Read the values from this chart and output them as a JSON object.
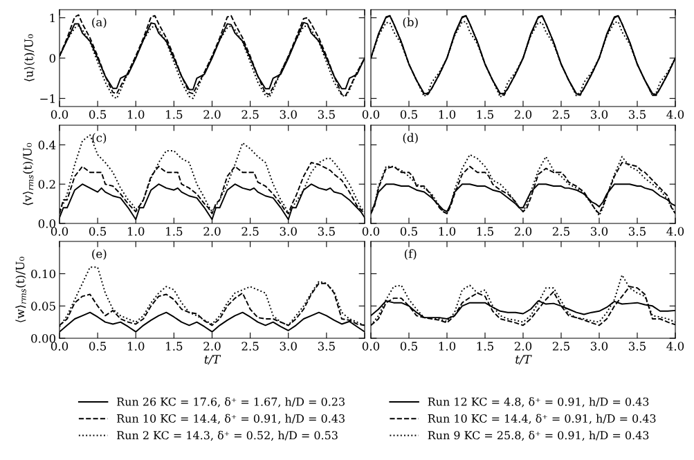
{
  "chart_data": [
    {
      "type": "line",
      "ylabel": "⟨u⟩(t)/U₀",
      "annotations": [
        "(a)"
      ],
      "xlim": [
        0,
        4
      ],
      "ylim": [
        -1.2,
        1.2
      ],
      "legend": "bottom",
      "xticks": [
        {
          "value": 0,
          "label": "0.0"
        },
        {
          "value": 0.5,
          "label": "0.5"
        },
        {
          "value": 1,
          "label": "1.0"
        },
        {
          "value": 1.5,
          "label": "1.5"
        },
        {
          "value": 2,
          "label": "2.0"
        },
        {
          "value": 2.5,
          "label": "2.5"
        },
        {
          "value": 3,
          "label": "3.0"
        },
        {
          "value": 3.5,
          "label": "3.5"
        },
        {
          "value": 4,
          "label": null
        }
      ],
      "yticks": [
        {
          "value": -1,
          "label": "−1"
        },
        0,
        1
      ],
      "grid": false,
      "x": [
        0,
        0.1,
        0.2,
        0.25,
        0.3,
        0.4,
        0.5,
        0.6,
        0.7,
        0.75,
        0.8,
        0.9,
        1,
        1.1,
        1.2,
        1.25,
        1.3,
        1.4,
        1.5,
        1.6,
        1.7,
        1.75,
        1.8,
        1.9,
        2,
        2.1,
        2.2,
        2.25,
        2.3,
        2.4,
        2.5,
        2.6,
        2.7,
        2.75,
        2.8,
        2.9,
        3,
        3.1,
        3.2,
        3.25,
        3.3,
        3.4,
        3.5,
        3.6,
        3.7,
        3.75,
        3.8,
        3.9,
        4
      ],
      "series": [
        {
          "name": "Run 26 KC = 17.6, δ⁺ = 1.67, h/D = 0.23",
          "color": "#000000",
          "line_style": "solid",
          "values": [
            0.05,
            0.45,
            0.85,
            0.85,
            0.62,
            0.42,
            0.0,
            -0.45,
            -0.75,
            -0.75,
            -0.5,
            -0.4,
            0.0,
            0.45,
            0.87,
            0.85,
            0.62,
            0.42,
            0.0,
            -0.45,
            -0.78,
            -0.78,
            -0.5,
            -0.4,
            0.0,
            0.45,
            0.85,
            0.83,
            0.62,
            0.42,
            0.0,
            -0.45,
            -0.76,
            -0.76,
            -0.5,
            -0.4,
            0.0,
            0.45,
            0.88,
            0.85,
            0.62,
            0.42,
            0.0,
            -0.45,
            -0.76,
            -0.76,
            -0.5,
            -0.4,
            0.0
          ]
        },
        {
          "name": "Run 10 KC = 14.4, δ⁺ = 0.91, h/D = 0.43",
          "color": "#000000",
          "line_style": "dashed",
          "values": [
            0.05,
            0.5,
            1.02,
            1.07,
            0.85,
            0.5,
            0.05,
            -0.45,
            -0.85,
            -0.88,
            -0.7,
            -0.35,
            0.05,
            0.5,
            1.02,
            1.05,
            0.85,
            0.5,
            0.05,
            -0.45,
            -0.85,
            -0.88,
            -0.7,
            -0.35,
            0.05,
            0.5,
            1.02,
            1.05,
            0.85,
            0.5,
            0.05,
            -0.45,
            -0.87,
            -0.9,
            -0.72,
            -0.35,
            0.05,
            0.5,
            0.98,
            1.0,
            0.85,
            0.5,
            0.05,
            -0.45,
            -0.9,
            -0.93,
            -0.75,
            -0.35,
            0.0
          ]
        },
        {
          "name": "Run 2 KC = 14.3, δ⁺ = 0.52, h/D = 0.53",
          "color": "#000000",
          "line_style": "dotted",
          "values": [
            0.05,
            0.45,
            0.75,
            0.8,
            0.7,
            0.4,
            -0.1,
            -0.6,
            -0.95,
            -1.0,
            -0.8,
            -0.35,
            0.05,
            0.45,
            0.75,
            0.8,
            0.7,
            0.4,
            -0.1,
            -0.6,
            -0.95,
            -1.0,
            -0.8,
            -0.35,
            0.05,
            0.45,
            0.75,
            0.8,
            0.7,
            0.4,
            -0.1,
            -0.6,
            -0.93,
            -0.97,
            -0.8,
            -0.35,
            0.05,
            0.45,
            0.78,
            0.8,
            0.7,
            0.4,
            -0.1,
            -0.6,
            -0.92,
            -0.95,
            -0.8,
            -0.35,
            0.0
          ]
        }
      ]
    },
    {
      "type": "line",
      "annotations": [
        "(b)"
      ],
      "xlim": [
        0,
        4
      ],
      "ylim": [
        -1.2,
        1.2
      ],
      "tick_labels": "x",
      "legend": "bottom",
      "xticks": [
        {
          "value": 0,
          "label": "0.0"
        },
        {
          "value": 0.5,
          "label": "0.5"
        },
        {
          "value": 1,
          "label": "1.0"
        },
        {
          "value": 1.5,
          "label": "1.5"
        },
        {
          "value": 2,
          "label": "2.0"
        },
        {
          "value": 2.5,
          "label": "2.5"
        },
        {
          "value": 3,
          "label": "3.0"
        },
        {
          "value": 3.5,
          "label": "3.5"
        },
        {
          "value": 4,
          "label": "4.0"
        }
      ],
      "yticks": [
        {
          "value": -1,
          "label": null
        },
        {
          "value": 0,
          "label": null
        },
        {
          "value": 1,
          "label": null
        }
      ],
      "grid": false,
      "x": [
        0,
        0.1,
        0.2,
        0.25,
        0.3,
        0.4,
        0.5,
        0.6,
        0.7,
        0.75,
        0.8,
        0.9,
        1,
        1.1,
        1.2,
        1.25,
        1.3,
        1.4,
        1.5,
        1.6,
        1.7,
        1.75,
        1.8,
        1.9,
        2,
        2.1,
        2.2,
        2.25,
        2.3,
        2.4,
        2.5,
        2.6,
        2.7,
        2.75,
        2.8,
        2.9,
        3,
        3.1,
        3.2,
        3.25,
        3.3,
        3.4,
        3.5,
        3.6,
        3.7,
        3.75,
        3.8,
        3.9,
        4
      ],
      "series": [
        {
          "name": "Run 12 KC = 4.8, δ⁺ = 0.91, h/D = 0.43",
          "color": "#000000",
          "line_style": "solid",
          "values": [
            0.0,
            0.6,
            1.02,
            1.05,
            0.85,
            0.4,
            -0.15,
            -0.55,
            -0.88,
            -0.88,
            -0.75,
            -0.4,
            0.0,
            0.6,
            1.02,
            1.05,
            0.85,
            0.4,
            -0.15,
            -0.55,
            -0.88,
            -0.88,
            -0.75,
            -0.4,
            0.0,
            0.6,
            1.02,
            1.05,
            0.85,
            0.4,
            -0.15,
            -0.55,
            -0.88,
            -0.9,
            -0.75,
            -0.4,
            0.0,
            0.6,
            1.02,
            1.05,
            0.85,
            0.4,
            -0.15,
            -0.55,
            -0.88,
            -0.9,
            -0.75,
            -0.4,
            0.0
          ]
        },
        {
          "name": "Run 10 KC = 14.4, δ⁺ = 0.91, h/D = 0.43",
          "color": "#000000",
          "line_style": "dashed",
          "values": [
            0.0,
            0.58,
            1.0,
            1.05,
            0.85,
            0.4,
            -0.15,
            -0.55,
            -0.9,
            -0.9,
            -0.75,
            -0.4,
            0.0,
            0.58,
            1.0,
            1.05,
            0.85,
            0.4,
            -0.15,
            -0.55,
            -0.9,
            -0.92,
            -0.75,
            -0.4,
            0.0,
            0.58,
            1.0,
            1.05,
            0.85,
            0.4,
            -0.15,
            -0.55,
            -0.9,
            -0.92,
            -0.75,
            -0.4,
            0.0,
            0.58,
            1.0,
            1.05,
            0.85,
            0.4,
            -0.15,
            -0.55,
            -0.92,
            -0.92,
            -0.75,
            -0.4,
            0.0
          ]
        },
        {
          "name": "Run 9 KC = 25.8, δ⁺ = 0.91, h/D = 0.43",
          "color": "#000000",
          "line_style": "dotted",
          "values": [
            0.0,
            0.55,
            0.88,
            0.88,
            0.65,
            0.35,
            -0.15,
            -0.55,
            -0.95,
            -0.85,
            -0.6,
            -0.35,
            0.0,
            0.55,
            0.9,
            0.9,
            0.65,
            0.35,
            -0.15,
            -0.55,
            -0.97,
            -0.85,
            -0.6,
            -0.35,
            0.0,
            0.55,
            0.88,
            0.88,
            0.65,
            0.35,
            -0.15,
            -0.55,
            -0.93,
            -0.85,
            -0.6,
            -0.35,
            0.0,
            0.55,
            0.88,
            0.9,
            0.65,
            0.35,
            -0.15,
            -0.55,
            -0.93,
            -0.85,
            -0.6,
            -0.35,
            0.0
          ]
        }
      ]
    },
    {
      "type": "line",
      "ylabel": "⟨v⟩$_{rms}$(t)/U₀",
      "annotations": [
        "(c)"
      ],
      "xlim": [
        0,
        4
      ],
      "ylim": [
        0,
        0.5
      ],
      "xticks": [
        {
          "value": 0,
          "label": "0.0"
        },
        {
          "value": 0.5,
          "label": "0.5"
        },
        {
          "value": 1,
          "label": "1.0"
        },
        {
          "value": 1.5,
          "label": "1.5"
        },
        {
          "value": 2,
          "label": "2.0"
        },
        {
          "value": 2.5,
          "label": "2.5"
        },
        {
          "value": 3,
          "label": "3.0"
        },
        {
          "value": 3.5,
          "label": "3.5"
        },
        {
          "value": 4,
          "label": null
        }
      ],
      "yticks": [
        {
          "value": 0,
          "label": "0.0"
        },
        {
          "value": 0.2,
          "label": "0.2"
        },
        {
          "value": 0.4,
          "label": "0.4"
        }
      ],
      "grid": false,
      "x": [
        0,
        0.05,
        0.1,
        0.2,
        0.3,
        0.4,
        0.5,
        0.55,
        0.6,
        0.7,
        0.8,
        0.9,
        0.95,
        1,
        1.05,
        1.1,
        1.2,
        1.3,
        1.4,
        1.5,
        1.55,
        1.6,
        1.7,
        1.8,
        1.9,
        1.95,
        2,
        2.05,
        2.1,
        2.2,
        2.3,
        2.4,
        2.5,
        2.55,
        2.6,
        2.7,
        2.8,
        2.9,
        2.95,
        3,
        3.05,
        3.1,
        3.2,
        3.3,
        3.4,
        3.5,
        3.55,
        3.6,
        3.7,
        3.8,
        3.9,
        3.95,
        4
      ],
      "series": [
        {
          "color": "#000000",
          "line_style": "solid",
          "values": [
            0.03,
            0.08,
            0.08,
            0.17,
            0.2,
            0.18,
            0.16,
            0.18,
            0.16,
            0.14,
            0.13,
            0.08,
            0.05,
            0.02,
            0.08,
            0.08,
            0.17,
            0.2,
            0.18,
            0.17,
            0.18,
            0.16,
            0.14,
            0.13,
            0.08,
            0.05,
            0.02,
            0.08,
            0.08,
            0.17,
            0.2,
            0.18,
            0.17,
            0.18,
            0.16,
            0.14,
            0.13,
            0.08,
            0.05,
            0.02,
            0.08,
            0.08,
            0.17,
            0.2,
            0.18,
            0.17,
            0.18,
            0.16,
            0.15,
            0.12,
            0.08,
            0.06,
            0.03
          ]
        },
        {
          "color": "#000000",
          "line_style": "dashed",
          "values": [
            0.05,
            0.12,
            0.12,
            0.24,
            0.29,
            0.26,
            0.26,
            0.26,
            0.2,
            0.19,
            0.15,
            0.1,
            0.08,
            0.06,
            0.09,
            0.12,
            0.24,
            0.29,
            0.26,
            0.26,
            0.26,
            0.2,
            0.18,
            0.15,
            0.1,
            0.08,
            0.05,
            0.1,
            0.12,
            0.24,
            0.29,
            0.26,
            0.26,
            0.26,
            0.21,
            0.19,
            0.15,
            0.1,
            0.07,
            0.05,
            0.1,
            0.14,
            0.24,
            0.31,
            0.3,
            0.28,
            0.27,
            0.25,
            0.22,
            0.16,
            0.09,
            0.07,
            0.05
          ]
        },
        {
          "color": "#000000",
          "line_style": "dotted",
          "values": [
            0.07,
            0.1,
            0.15,
            0.3,
            0.42,
            0.45,
            0.35,
            0.33,
            0.31,
            0.26,
            0.18,
            0.12,
            0.1,
            0.07,
            0.09,
            0.12,
            0.23,
            0.31,
            0.37,
            0.37,
            0.35,
            0.33,
            0.31,
            0.2,
            0.13,
            0.09,
            0.06,
            0.09,
            0.12,
            0.2,
            0.3,
            0.41,
            0.38,
            0.36,
            0.34,
            0.31,
            0.2,
            0.12,
            0.09,
            0.05,
            0.08,
            0.11,
            0.17,
            0.26,
            0.31,
            0.33,
            0.33,
            0.31,
            0.26,
            0.2,
            0.12,
            0.08,
            0.06
          ]
        }
      ]
    },
    {
      "type": "line",
      "annotations": [
        "(d)"
      ],
      "xlim": [
        0,
        4
      ],
      "ylim": [
        0,
        0.5
      ],
      "tick_labels": "x",
      "xticks": [
        {
          "value": 0,
          "label": "0.0"
        },
        {
          "value": 0.5,
          "label": "0.5"
        },
        {
          "value": 1,
          "label": "1.0"
        },
        {
          "value": 1.5,
          "label": "1.5"
        },
        {
          "value": 2,
          "label": "2.0"
        },
        {
          "value": 2.5,
          "label": "2.5"
        },
        {
          "value": 3,
          "label": "3.0"
        },
        {
          "value": 3.5,
          "label": "3.5"
        },
        {
          "value": 4,
          "label": "4.0"
        }
      ],
      "yticks": [
        {
          "value": 0,
          "label": null
        },
        {
          "value": 0.2,
          "label": null
        },
        {
          "value": 0.4,
          "label": null
        }
      ],
      "grid": false,
      "x": [
        0,
        0.05,
        0.1,
        0.2,
        0.3,
        0.4,
        0.5,
        0.55,
        0.6,
        0.7,
        0.8,
        0.9,
        0.95,
        1,
        1.05,
        1.1,
        1.2,
        1.3,
        1.4,
        1.5,
        1.55,
        1.6,
        1.7,
        1.8,
        1.9,
        1.95,
        2,
        2.05,
        2.1,
        2.2,
        2.3,
        2.4,
        2.5,
        2.55,
        2.6,
        2.7,
        2.8,
        2.9,
        2.95,
        3,
        3.05,
        3.1,
        3.2,
        3.3,
        3.4,
        3.5,
        3.55,
        3.6,
        3.7,
        3.8,
        3.9,
        3.95,
        4
      ],
      "series": [
        {
          "color": "#000000",
          "line_style": "solid",
          "values": [
            0.05,
            0.1,
            0.16,
            0.2,
            0.2,
            0.19,
            0.19,
            0.18,
            0.17,
            0.16,
            0.13,
            0.09,
            0.07,
            0.06,
            0.1,
            0.16,
            0.2,
            0.2,
            0.19,
            0.19,
            0.18,
            0.17,
            0.16,
            0.13,
            0.1,
            0.08,
            0.08,
            0.12,
            0.16,
            0.2,
            0.2,
            0.19,
            0.19,
            0.18,
            0.18,
            0.17,
            0.15,
            0.11,
            0.1,
            0.085,
            0.11,
            0.15,
            0.2,
            0.2,
            0.2,
            0.19,
            0.19,
            0.18,
            0.17,
            0.14,
            0.12,
            0.1,
            0.09
          ]
        },
        {
          "color": "#000000",
          "line_style": "dashed",
          "values": [
            0.05,
            0.09,
            0.18,
            0.28,
            0.29,
            0.26,
            0.26,
            0.24,
            0.19,
            0.19,
            0.14,
            0.08,
            0.06,
            0.05,
            0.09,
            0.15,
            0.25,
            0.29,
            0.26,
            0.26,
            0.24,
            0.2,
            0.17,
            0.15,
            0.11,
            0.08,
            0.06,
            0.08,
            0.13,
            0.25,
            0.28,
            0.26,
            0.26,
            0.24,
            0.21,
            0.19,
            0.16,
            0.1,
            0.07,
            0.05,
            0.09,
            0.14,
            0.24,
            0.31,
            0.3,
            0.29,
            0.27,
            0.26,
            0.22,
            0.18,
            0.14,
            0.08,
            0.05
          ]
        },
        {
          "color": "#000000",
          "line_style": "dotted",
          "values": [
            0.06,
            0.1,
            0.19,
            0.29,
            0.29,
            0.27,
            0.24,
            0.22,
            0.2,
            0.18,
            0.15,
            0.09,
            0.06,
            0.05,
            0.1,
            0.17,
            0.28,
            0.35,
            0.33,
            0.29,
            0.26,
            0.22,
            0.2,
            0.16,
            0.11,
            0.08,
            0.06,
            0.1,
            0.16,
            0.27,
            0.34,
            0.27,
            0.24,
            0.22,
            0.2,
            0.18,
            0.15,
            0.1,
            0.07,
            0.04,
            0.08,
            0.14,
            0.25,
            0.34,
            0.29,
            0.27,
            0.25,
            0.23,
            0.2,
            0.17,
            0.12,
            0.08,
            0.06
          ]
        }
      ]
    },
    {
      "type": "line",
      "ylabel": "⟨w⟩$_{rms}$(t)/U₀",
      "xlabel": "t/T",
      "annotations": [
        "(e)"
      ],
      "xlim": [
        0,
        4
      ],
      "ylim": [
        0,
        0.15
      ],
      "xticks": [
        {
          "value": 0,
          "label": "0.0"
        },
        {
          "value": 0.5,
          "label": "0.5"
        },
        {
          "value": 1,
          "label": "1.0"
        },
        {
          "value": 1.5,
          "label": "1.5"
        },
        {
          "value": 2,
          "label": "2.0"
        },
        {
          "value": 2.5,
          "label": "2.5"
        },
        {
          "value": 3,
          "label": "3.0"
        },
        {
          "value": 3.5,
          "label": "3.5"
        },
        {
          "value": 4,
          "label": null
        }
      ],
      "yticks": [
        {
          "value": 0,
          "label": "0.00"
        },
        {
          "value": 0.05,
          "label": "0.05"
        },
        {
          "value": 0.1,
          "label": "0.10"
        }
      ],
      "grid": false,
      "x": [
        0,
        0.1,
        0.2,
        0.3,
        0.4,
        0.5,
        0.6,
        0.7,
        0.8,
        0.9,
        1,
        1.1,
        1.2,
        1.3,
        1.4,
        1.5,
        1.6,
        1.7,
        1.8,
        1.9,
        2,
        2.1,
        2.2,
        2.3,
        2.4,
        2.5,
        2.6,
        2.7,
        2.8,
        2.9,
        3,
        3.1,
        3.2,
        3.3,
        3.4,
        3.5,
        3.6,
        3.7,
        3.8,
        3.9,
        4
      ],
      "series": [
        {
          "color": "#000000",
          "line_style": "solid",
          "values": [
            0.01,
            0.02,
            0.03,
            0.035,
            0.04,
            0.033,
            0.025,
            0.022,
            0.025,
            0.018,
            0.01,
            0.02,
            0.028,
            0.035,
            0.04,
            0.033,
            0.025,
            0.02,
            0.025,
            0.018,
            0.01,
            0.02,
            0.028,
            0.035,
            0.04,
            0.033,
            0.025,
            0.02,
            0.025,
            0.018,
            0.012,
            0.02,
            0.03,
            0.035,
            0.04,
            0.035,
            0.028,
            0.022,
            0.026,
            0.018,
            0.01
          ]
        },
        {
          "color": "#000000",
          "line_style": "dashed",
          "values": [
            0.02,
            0.03,
            0.055,
            0.065,
            0.068,
            0.05,
            0.035,
            0.043,
            0.03,
            0.025,
            0.022,
            0.03,
            0.05,
            0.065,
            0.068,
            0.06,
            0.045,
            0.04,
            0.038,
            0.027,
            0.02,
            0.03,
            0.05,
            0.062,
            0.07,
            0.045,
            0.032,
            0.03,
            0.03,
            0.025,
            0.02,
            0.03,
            0.045,
            0.068,
            0.085,
            0.085,
            0.07,
            0.03,
            0.028,
            0.022,
            0.02
          ]
        },
        {
          "color": "#000000",
          "line_style": "dotted",
          "values": [
            0.018,
            0.035,
            0.06,
            0.085,
            0.11,
            0.11,
            0.07,
            0.045,
            0.035,
            0.03,
            0.025,
            0.035,
            0.055,
            0.07,
            0.08,
            0.075,
            0.055,
            0.04,
            0.035,
            0.028,
            0.022,
            0.035,
            0.055,
            0.07,
            0.075,
            0.08,
            0.075,
            0.07,
            0.035,
            0.025,
            0.02,
            0.035,
            0.05,
            0.07,
            0.088,
            0.085,
            0.072,
            0.04,
            0.03,
            0.025,
            0.02
          ]
        }
      ]
    },
    {
      "type": "line",
      "xlabel": "t/T",
      "annotations": [
        "(f)"
      ],
      "xlim": [
        0,
        4
      ],
      "ylim": [
        0,
        0.15
      ],
      "tick_labels": "x",
      "xticks": [
        {
          "value": 0,
          "label": "0.0"
        },
        {
          "value": 0.5,
          "label": "0.5"
        },
        {
          "value": 1,
          "label": "1.0"
        },
        {
          "value": 1.5,
          "label": "1.5"
        },
        {
          "value": 2,
          "label": "2.0"
        },
        {
          "value": 2.5,
          "label": "2.5"
        },
        {
          "value": 3,
          "label": "3.0"
        },
        {
          "value": 3.5,
          "label": "3.5"
        },
        {
          "value": 4,
          "label": "4.0"
        }
      ],
      "yticks": [
        {
          "value": 0,
          "label": null
        },
        {
          "value": 0.05,
          "label": null
        },
        {
          "value": 0.1,
          "label": null
        }
      ],
      "grid": false,
      "x": [
        0,
        0.1,
        0.2,
        0.3,
        0.4,
        0.5,
        0.6,
        0.7,
        0.8,
        0.9,
        1,
        1.1,
        1.2,
        1.3,
        1.4,
        1.5,
        1.6,
        1.7,
        1.8,
        1.9,
        2,
        2.1,
        2.2,
        2.3,
        2.4,
        2.5,
        2.6,
        2.7,
        2.8,
        2.9,
        3,
        3.1,
        3.2,
        3.3,
        3.4,
        3.5,
        3.6,
        3.7,
        3.8,
        3.9,
        4
      ],
      "series": [
        {
          "color": "#000000",
          "line_style": "solid",
          "values": [
            0.035,
            0.045,
            0.058,
            0.055,
            0.055,
            0.05,
            0.04,
            0.032,
            0.032,
            0.032,
            0.03,
            0.035,
            0.05,
            0.055,
            0.055,
            0.055,
            0.048,
            0.042,
            0.04,
            0.04,
            0.038,
            0.045,
            0.058,
            0.053,
            0.054,
            0.05,
            0.045,
            0.04,
            0.037,
            0.04,
            0.042,
            0.048,
            0.057,
            0.053,
            0.054,
            0.055,
            0.052,
            0.05,
            0.042,
            0.042,
            0.043
          ]
        },
        {
          "color": "#000000",
          "line_style": "dashed",
          "values": [
            0.02,
            0.03,
            0.055,
            0.062,
            0.062,
            0.05,
            0.035,
            0.032,
            0.03,
            0.028,
            0.024,
            0.035,
            0.055,
            0.063,
            0.07,
            0.065,
            0.042,
            0.03,
            0.027,
            0.024,
            0.02,
            0.03,
            0.045,
            0.06,
            0.072,
            0.05,
            0.035,
            0.032,
            0.028,
            0.024,
            0.02,
            0.03,
            0.05,
            0.065,
            0.08,
            0.078,
            0.068,
            0.03,
            0.03,
            0.025,
            0.021
          ]
        },
        {
          "color": "#000000",
          "line_style": "dotted",
          "values": [
            0.02,
            0.035,
            0.06,
            0.08,
            0.082,
            0.06,
            0.045,
            0.032,
            0.03,
            0.03,
            0.026,
            0.04,
            0.075,
            0.082,
            0.07,
            0.075,
            0.05,
            0.035,
            0.03,
            0.028,
            0.025,
            0.035,
            0.055,
            0.078,
            0.078,
            0.058,
            0.038,
            0.032,
            0.03,
            0.027,
            0.025,
            0.04,
            0.06,
            0.098,
            0.078,
            0.07,
            0.065,
            0.035,
            0.033,
            0.03,
            0.025
          ]
        }
      ]
    }
  ]
}
